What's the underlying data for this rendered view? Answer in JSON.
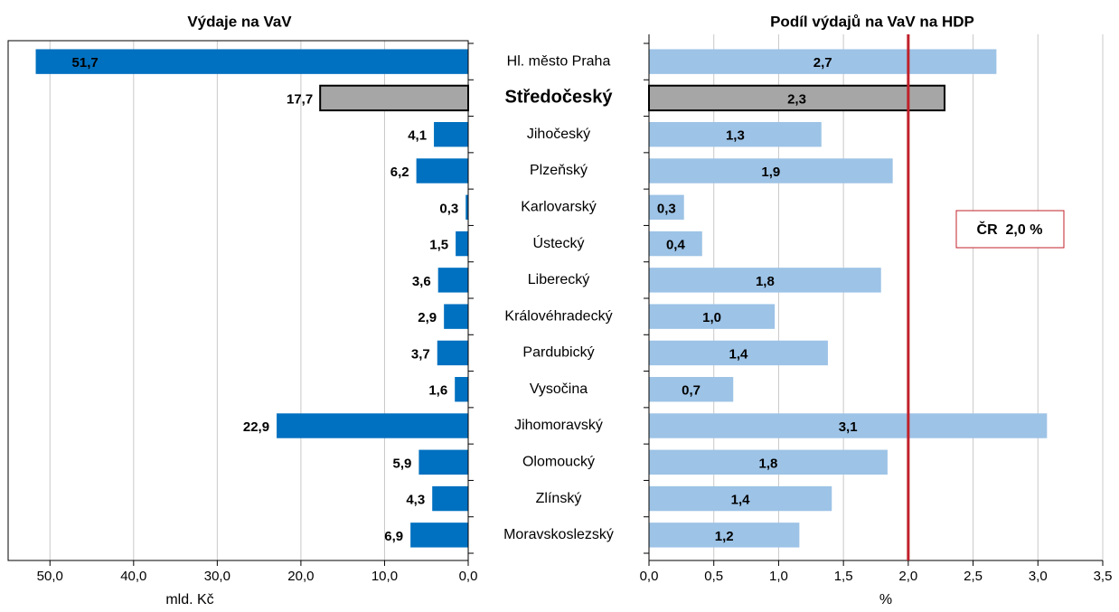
{
  "chart_data": [
    {
      "type": "bar",
      "orientation": "horizontal",
      "title": "Výdaje na VaV",
      "xlabel": "mld. Kč",
      "categories": [
        "Hl. město Praha",
        "Středočeský",
        "Jihočeský",
        "Plzeňský",
        "Karlovarský",
        "Ústecký",
        "Liberecký",
        "Královéhradecký",
        "Pardubický",
        "Vysočina",
        "Jihomoravský",
        "Olomoucký",
        "Zlínský",
        "Moravskoslezský"
      ],
      "values": [
        51.7,
        17.7,
        4.1,
        6.2,
        0.3,
        1.5,
        3.6,
        2.9,
        3.7,
        1.6,
        22.9,
        5.9,
        4.3,
        6.9
      ],
      "value_labels": [
        "51,7",
        "17,7",
        "4,1",
        "6,2",
        "0,3",
        "1,5",
        "3,6",
        "2,9",
        "3,7",
        "1,6",
        "22,9",
        "5,9",
        "4,3",
        "6,9"
      ],
      "color": "#0070c0",
      "highlight": 1,
      "highlight_color": "#a6a6a6",
      "xlim": [
        0,
        55
      ],
      "x_reversed": true,
      "xticks": [
        {
          "value": 50,
          "label": "50,0"
        },
        {
          "value": 40,
          "label": "40,0"
        },
        {
          "value": 30,
          "label": "30,0"
        },
        {
          "value": 20,
          "label": "20,0"
        },
        {
          "value": 10,
          "label": "10,0"
        },
        {
          "value": 0,
          "label": "0,0"
        }
      ],
      "grid": true
    },
    {
      "type": "bar",
      "orientation": "horizontal",
      "title": "Podíl výdajů na VaV na HDP",
      "xlabel": "%",
      "values": [
        2.68,
        2.28,
        1.33,
        1.88,
        0.27,
        0.41,
        1.79,
        0.97,
        1.38,
        0.65,
        3.07,
        1.84,
        1.41,
        1.16
      ],
      "value_labels": [
        "2,7",
        "2,3",
        "1,3",
        "1,9",
        "0,3",
        "0,4",
        "1,8",
        "1,0",
        "1,4",
        "0,7",
        "3,1",
        "1,8",
        "1,4",
        "1,2"
      ],
      "color": "#9dc3e6",
      "highlight": 1,
      "highlight_color": "#a6a6a6",
      "xlim": [
        0,
        3.5
      ],
      "xticks": [
        {
          "value": 0,
          "label": "0,0"
        },
        {
          "value": 0.5,
          "label": "0,5"
        },
        {
          "value": 1,
          "label": "1,0"
        },
        {
          "value": 1.5,
          "label": "1,5"
        },
        {
          "value": 2,
          "label": "2,0"
        },
        {
          "value": 2.5,
          "label": "2,5"
        },
        {
          "value": 3,
          "label": "3,0"
        },
        {
          "value": 3.5,
          "label": "3,5"
        }
      ],
      "grid": true,
      "reference_line": {
        "value": 2.0,
        "color": "#c0202a",
        "label": "ČR  2,0 %"
      }
    }
  ]
}
